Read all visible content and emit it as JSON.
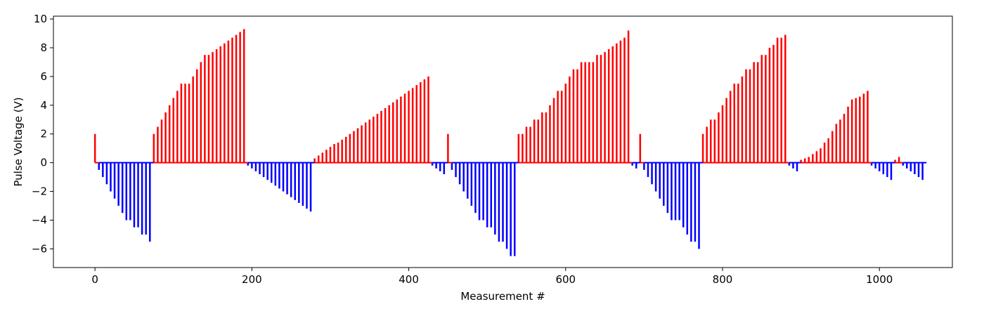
{
  "chart_data": {
    "type": "bar",
    "title": "",
    "xlabel": "Measurement #",
    "ylabel": "Pulse Voltage (V)",
    "xlim": [
      -53,
      1093
    ],
    "ylim": [
      -7.3,
      10.2
    ],
    "xticks": [
      0,
      200,
      400,
      600,
      800,
      1000
    ],
    "yticks": [
      -6,
      -4,
      -2,
      0,
      2,
      4,
      6,
      8,
      10
    ],
    "grid": false,
    "colors": {
      "positive": "#ff0000",
      "negative": "#0000ff",
      "baseline": "#ff0000",
      "baseline_negative": "#0000ff"
    },
    "baseline_x_range": [
      0,
      1060
    ],
    "segments": [
      {
        "polarity": "positive",
        "x": [
          0
        ],
        "values": [
          2.0
        ]
      },
      {
        "polarity": "negative",
        "x": [
          5,
          10,
          15,
          20,
          25,
          30,
          35,
          40,
          45,
          50,
          55,
          60,
          65,
          70
        ],
        "values": [
          -0.5,
          -1.0,
          -1.5,
          -2.0,
          -2.5,
          -3.0,
          -3.5,
          -4.0,
          -4.0,
          -4.5,
          -4.5,
          -5.0,
          -5.0,
          -5.5
        ]
      },
      {
        "polarity": "positive",
        "x": [
          75,
          80,
          85,
          90,
          95,
          100,
          105,
          110,
          115,
          120,
          125,
          130,
          135,
          140,
          145,
          150,
          155,
          160,
          165,
          170,
          175,
          180,
          185,
          190
        ],
        "values": [
          2.0,
          2.5,
          3.0,
          3.5,
          4.0,
          4.5,
          5.0,
          5.5,
          5.5,
          5.5,
          6.0,
          6.5,
          7.0,
          7.5,
          7.5,
          7.7,
          7.9,
          8.1,
          8.3,
          8.5,
          8.7,
          8.9,
          9.1,
          9.3
        ]
      },
      {
        "polarity": "negative",
        "x": [
          195,
          200,
          205,
          210,
          215,
          220,
          225,
          230,
          235,
          240,
          245,
          250,
          255,
          260,
          265,
          270,
          275
        ],
        "values": [
          -0.2,
          -0.4,
          -0.6,
          -0.8,
          -1.0,
          -1.2,
          -1.4,
          -1.6,
          -1.8,
          -2.0,
          -2.2,
          -2.4,
          -2.6,
          -2.8,
          -3.0,
          -3.2,
          -3.4
        ]
      },
      {
        "polarity": "positive",
        "x": [
          280,
          285,
          290,
          295,
          300,
          305,
          310,
          315,
          320,
          325,
          330,
          335,
          340,
          345,
          350,
          355,
          360,
          365,
          370,
          375,
          380,
          385,
          390,
          395,
          400,
          405,
          410,
          415,
          420,
          425
        ],
        "values": [
          0.3,
          0.5,
          0.7,
          0.9,
          1.1,
          1.3,
          1.4,
          1.6,
          1.8,
          2.0,
          2.2,
          2.4,
          2.6,
          2.8,
          3.0,
          3.2,
          3.4,
          3.6,
          3.8,
          4.0,
          4.2,
          4.4,
          4.6,
          4.8,
          5.0,
          5.2,
          5.4,
          5.6,
          5.8,
          6.0
        ]
      },
      {
        "polarity": "negative",
        "x": [
          430,
          435,
          440,
          445
        ],
        "values": [
          -0.2,
          -0.4,
          -0.6,
          -0.8
        ]
      },
      {
        "polarity": "positive",
        "x": [
          450
        ],
        "values": [
          2.0
        ]
      },
      {
        "polarity": "negative",
        "x": [
          455,
          460,
          465,
          470,
          475,
          480,
          485,
          490,
          495,
          500,
          505,
          510,
          515,
          520,
          525,
          530,
          535
        ],
        "values": [
          -0.5,
          -1.0,
          -1.5,
          -2.0,
          -2.5,
          -3.0,
          -3.5,
          -4.0,
          -4.0,
          -4.5,
          -4.5,
          -5.0,
          -5.5,
          -5.5,
          -6.0,
          -6.5,
          -6.5
        ]
      },
      {
        "polarity": "positive",
        "x": [
          540,
          545,
          550,
          555,
          560,
          565,
          570,
          575,
          580,
          585,
          590,
          595,
          600,
          605,
          610,
          615,
          620,
          625,
          630,
          635,
          640,
          645,
          650,
          655,
          660,
          665,
          670,
          675,
          680
        ],
        "values": [
          2.0,
          2.0,
          2.5,
          2.5,
          3.0,
          3.0,
          3.5,
          3.5,
          4.0,
          4.5,
          5.0,
          5.0,
          5.5,
          6.0,
          6.5,
          6.5,
          7.0,
          7.0,
          7.0,
          7.0,
          7.5,
          7.5,
          7.7,
          7.9,
          8.1,
          8.3,
          8.5,
          8.7,
          9.2
        ]
      },
      {
        "polarity": "negative",
        "x": [
          685,
          690
        ],
        "values": [
          -0.2,
          -0.4
        ]
      },
      {
        "polarity": "positive",
        "x": [
          695
        ],
        "values": [
          2.0
        ]
      },
      {
        "polarity": "negative",
        "x": [
          700,
          705,
          710,
          715,
          720,
          725,
          730,
          735,
          740,
          745,
          750,
          755,
          760,
          765,
          770
        ],
        "values": [
          -0.5,
          -1.0,
          -1.5,
          -2.0,
          -2.5,
          -3.0,
          -3.5,
          -4.0,
          -4.0,
          -4.0,
          -4.5,
          -5.0,
          -5.5,
          -5.5,
          -6.0
        ]
      },
      {
        "polarity": "positive",
        "x": [
          775,
          780,
          785,
          790,
          795,
          800,
          805,
          810,
          815,
          820,
          825,
          830,
          835,
          840,
          845,
          850,
          855,
          860,
          865,
          870,
          875,
          880
        ],
        "values": [
          2.0,
          2.5,
          3.0,
          3.0,
          3.5,
          4.0,
          4.5,
          5.0,
          5.5,
          5.5,
          6.0,
          6.5,
          6.5,
          7.0,
          7.0,
          7.5,
          7.5,
          8.0,
          8.2,
          8.7,
          8.7,
          8.9
        ]
      },
      {
        "polarity": "negative",
        "x": [
          885,
          890,
          895
        ],
        "values": [
          -0.2,
          -0.4,
          -0.6
        ]
      },
      {
        "polarity": "positive",
        "x": [
          900,
          905,
          910,
          915,
          920,
          925,
          930,
          935,
          940,
          945,
          950,
          955,
          960,
          965,
          970,
          975,
          980,
          985
        ],
        "values": [
          0.2,
          0.3,
          0.4,
          0.6,
          0.8,
          1.0,
          1.4,
          1.7,
          2.2,
          2.7,
          3.0,
          3.4,
          3.9,
          4.4,
          4.5,
          4.6,
          4.8,
          5.0
        ]
      },
      {
        "polarity": "negative",
        "x": [
          990,
          995,
          1000,
          1005,
          1010,
          1015
        ],
        "values": [
          -0.2,
          -0.4,
          -0.6,
          -0.8,
          -1.0,
          -1.2
        ]
      },
      {
        "polarity": "positive",
        "x": [
          1020,
          1025
        ],
        "values": [
          0.2,
          0.4
        ]
      },
      {
        "polarity": "negative",
        "x": [
          1030,
          1035,
          1040,
          1045,
          1050,
          1055
        ],
        "values": [
          -0.2,
          -0.4,
          -0.6,
          -0.8,
          -1.0,
          -1.2
        ]
      }
    ]
  }
}
